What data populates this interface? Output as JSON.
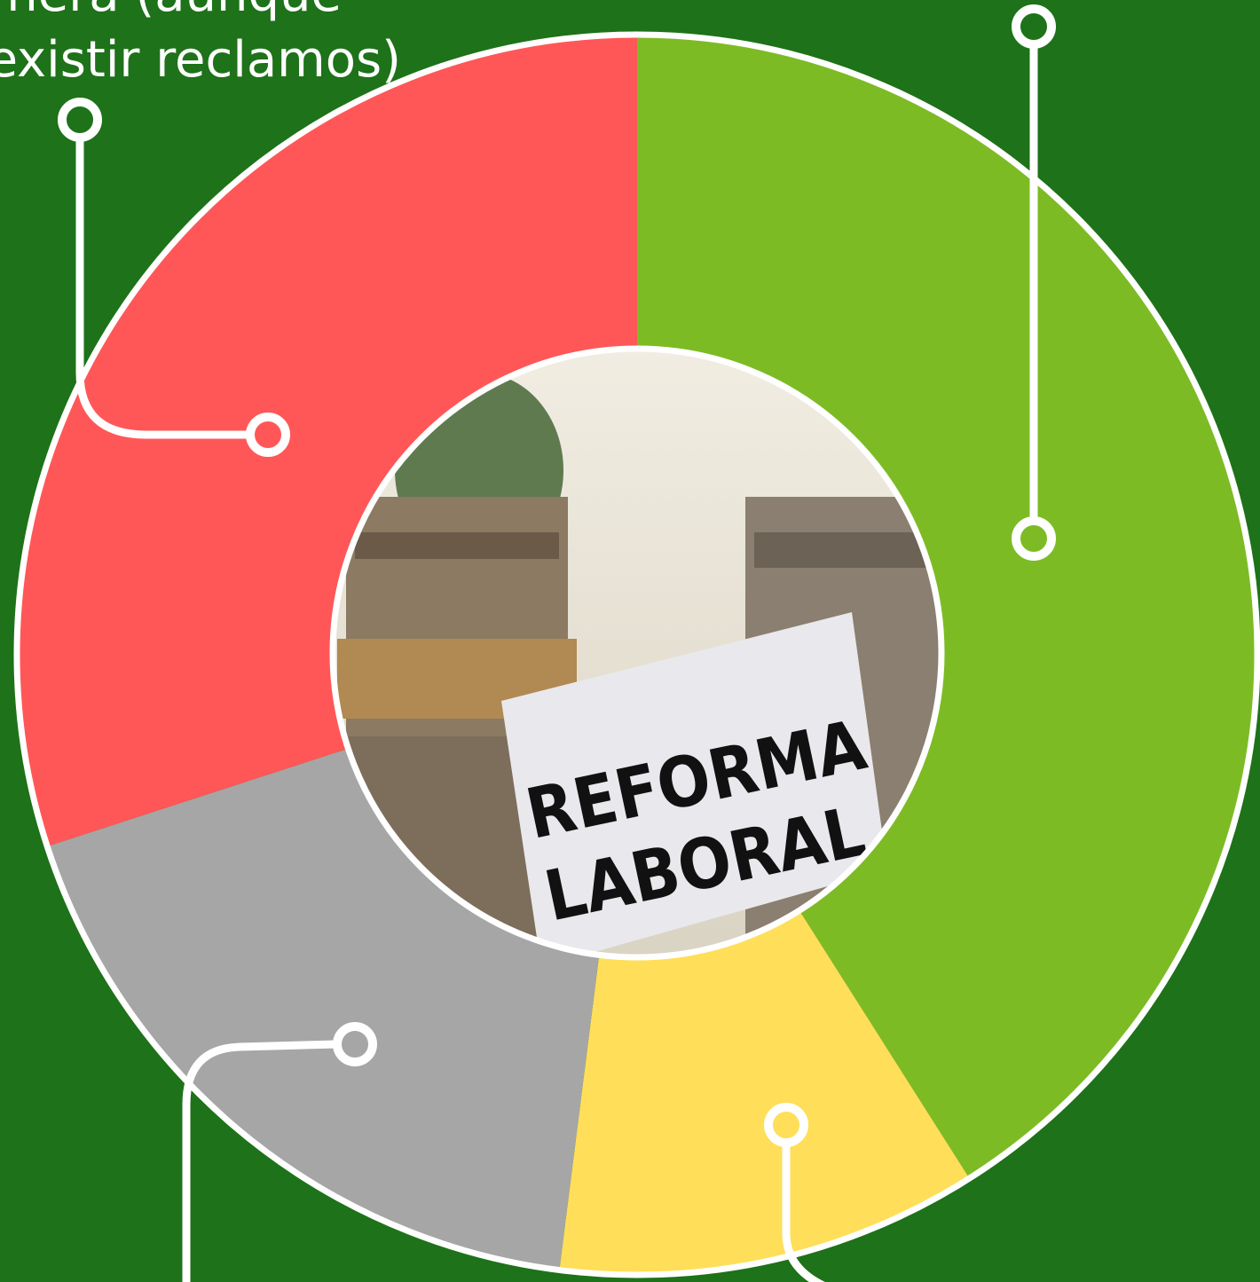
{
  "chart_data": {
    "type": "pie",
    "values": [
      41,
      11,
      18,
      30
    ],
    "colors": [
      "#7dbb25",
      "#ffde59",
      "#a6a6a6",
      "#ff5757"
    ],
    "annotations": [
      "nera (aunque",
      "existir reclamos)"
    ],
    "image_text": [
      "REFORMA",
      "LABORAL"
    ]
  }
}
